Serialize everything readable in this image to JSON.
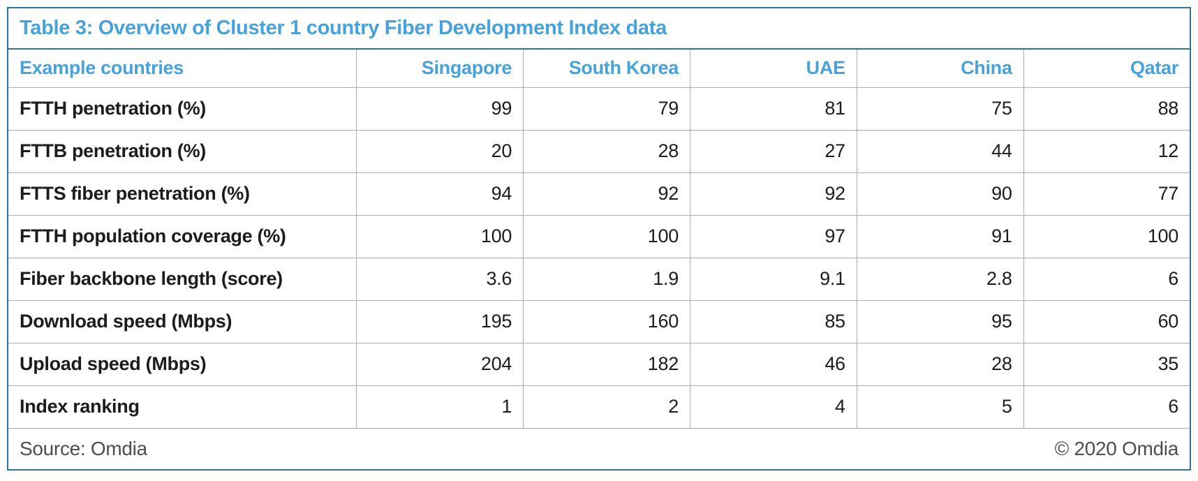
{
  "table": {
    "title": "Table 3: Overview of Cluster 1 country Fiber Development Index data",
    "header": {
      "row_label": "Example countries",
      "columns": [
        "Singapore",
        "South Korea",
        "UAE",
        "China",
        "Qatar"
      ]
    },
    "rows": [
      {
        "label": "FTTH penetration (%)",
        "values": [
          "99",
          "79",
          "81",
          "75",
          "88"
        ]
      },
      {
        "label": "FTTB penetration (%)",
        "values": [
          "20",
          "28",
          "27",
          "44",
          "12"
        ]
      },
      {
        "label": "FTTS fiber penetration (%)",
        "values": [
          "94",
          "92",
          "92",
          "90",
          "77"
        ]
      },
      {
        "label": "FTTH population coverage (%)",
        "values": [
          "100",
          "100",
          "97",
          "91",
          "100"
        ]
      },
      {
        "label": "Fiber backbone length (score)",
        "values": [
          "3.6",
          "1.9",
          "9.1",
          "2.8",
          "6"
        ]
      },
      {
        "label": "Download speed (Mbps)",
        "values": [
          "195",
          "160",
          "85",
          "95",
          "60"
        ]
      },
      {
        "label": "Upload speed (Mbps)",
        "values": [
          "204",
          "182",
          "46",
          "28",
          "35"
        ]
      },
      {
        "label": "Index ranking",
        "values": [
          "1",
          "2",
          "4",
          "5",
          "6"
        ]
      }
    ],
    "footer": {
      "source": "Source: Omdia",
      "copyright": "© 2020 Omdia"
    },
    "colors": {
      "accent_blue_text": "#47a1da",
      "frame_blue": "#2e7496",
      "grid_gray": "#ababab",
      "body_text": "#1c1c1c",
      "footer_text": "#4d4d4d"
    }
  },
  "chart_data": {
    "type": "table",
    "title": "Table 3: Overview of Cluster 1 country Fiber Development Index data",
    "columns": [
      "Example countries",
      "Singapore",
      "South Korea",
      "UAE",
      "China",
      "Qatar"
    ],
    "rows": [
      [
        "FTTH penetration (%)",
        99,
        79,
        81,
        75,
        88
      ],
      [
        "FTTB penetration (%)",
        20,
        28,
        27,
        44,
        12
      ],
      [
        "FTTS fiber penetration (%)",
        94,
        92,
        92,
        90,
        77
      ],
      [
        "FTTH population coverage (%)",
        100,
        100,
        97,
        91,
        100
      ],
      [
        "Fiber backbone length (score)",
        3.6,
        1.9,
        9.1,
        2.8,
        6
      ],
      [
        "Download speed (Mbps)",
        195,
        160,
        85,
        95,
        60
      ],
      [
        "Upload speed (Mbps)",
        204,
        182,
        46,
        28,
        35
      ],
      [
        "Index ranking",
        1,
        2,
        4,
        5,
        6
      ]
    ],
    "source": "Source: Omdia",
    "copyright": "© 2020 Omdia"
  }
}
